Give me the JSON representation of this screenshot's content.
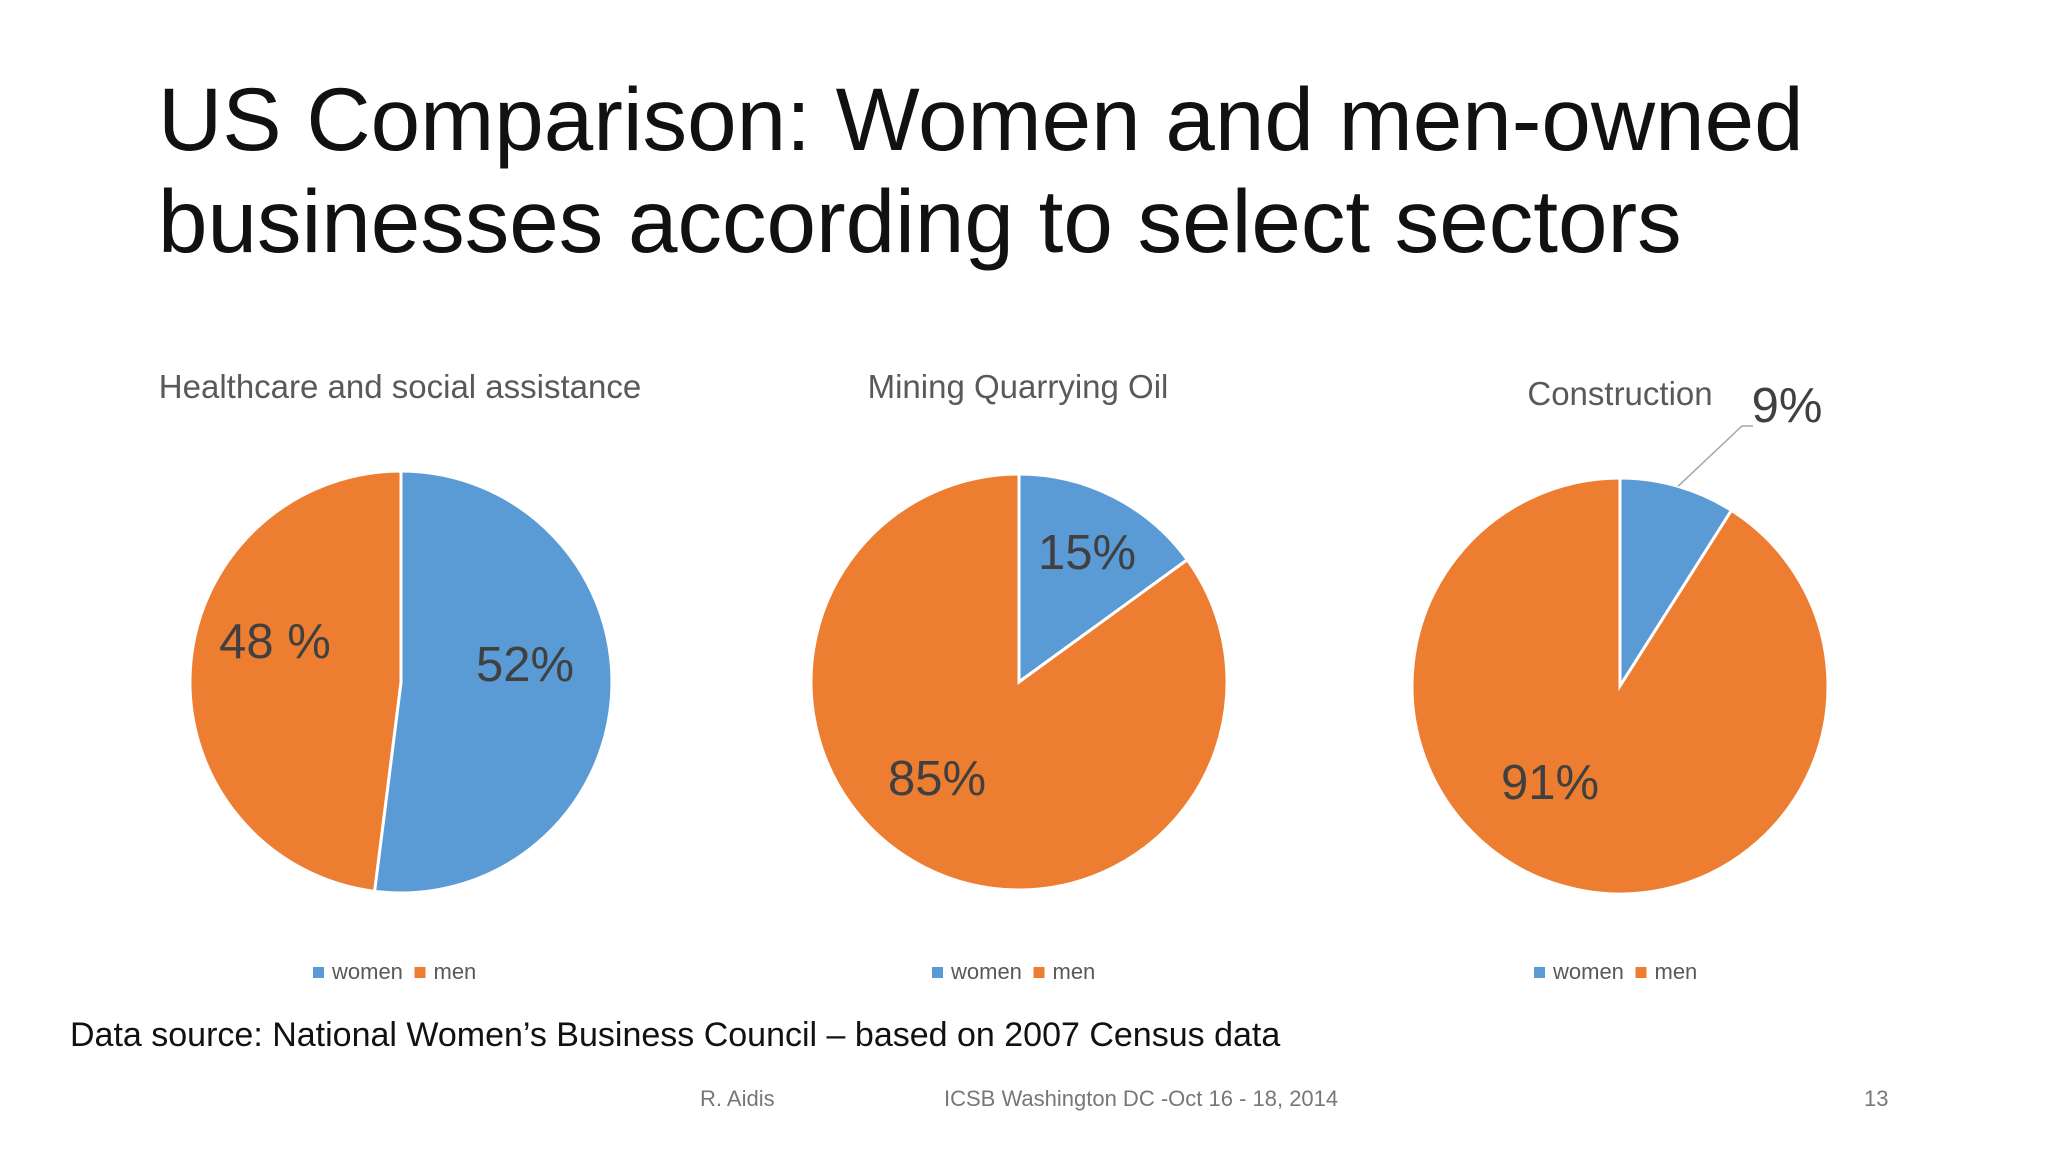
{
  "slide": {
    "title_line1": "US Comparison: Women and men-owned",
    "title_line2": "businesses according to select sectors",
    "source": "Data source: National Women’s Business Council – based on 2007 Census data",
    "footer_author": "R. Aidis",
    "footer_event": "ICSB Washington DC -Oct 16 - 18, 2014",
    "page_number": "13"
  },
  "colors": {
    "women": "#5b9bd5",
    "men": "#ed7d31",
    "text": "#404040"
  },
  "chart_data": [
    {
      "type": "pie",
      "title": "Healthcare and social assistance",
      "categories": [
        "women",
        "men"
      ],
      "values": [
        52,
        48
      ],
      "labels": [
        "52%",
        "48 %"
      ],
      "legend": "bottom"
    },
    {
      "type": "pie",
      "title": "Mining Quarrying Oil",
      "categories": [
        "women",
        "men"
      ],
      "values": [
        15,
        85
      ],
      "labels": [
        "15%",
        "85%"
      ],
      "legend": "bottom"
    },
    {
      "type": "pie",
      "title": "Construction",
      "categories": [
        "women",
        "men"
      ],
      "values": [
        9,
        91
      ],
      "labels": [
        "9%",
        "91%"
      ],
      "legend": "bottom"
    }
  ]
}
